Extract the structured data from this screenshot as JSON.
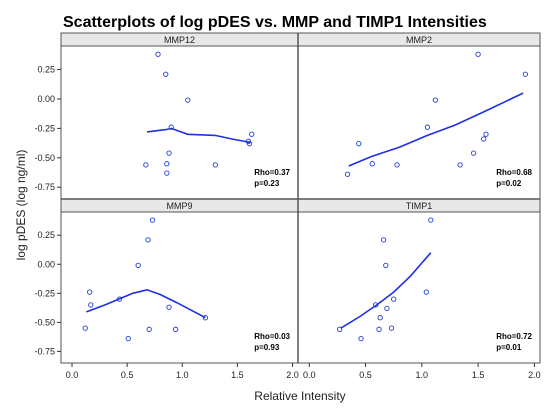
{
  "title": "Scatterplots of log pDES vs. MMP and TIMP1 Intensities",
  "ylabel": "log pDES (log ng/ml)",
  "xlabel": "Relative Intensity",
  "colors": {
    "points": "#1f3fd6",
    "line": "#1f2fe6",
    "panel_header": "#e8e8e8",
    "frame": "#555555"
  },
  "chart_data": {
    "type": "scatter",
    "layout": "2x2 panels",
    "xlim": [
      -0.1,
      2.05
    ],
    "ylim": [
      -0.85,
      0.45
    ],
    "x_ticks": [
      0.0,
      0.5,
      1.0,
      1.5,
      2.0
    ],
    "x_tick_labels": [
      "0.0",
      "0.5",
      "1.0",
      "1.5",
      "2.0"
    ],
    "y_ticks": [
      -0.75,
      -0.5,
      -0.25,
      0.0,
      0.25
    ],
    "y_tick_labels": [
      "-0.75",
      "-0.50",
      "-0.25",
      "0.00",
      "0.25"
    ],
    "grid": false,
    "panels": [
      {
        "name": "MMP12",
        "rho": "Rho=0.37",
        "p": "p=0.23",
        "points": [
          [
            0.67,
            -0.56
          ],
          [
            0.78,
            0.38
          ],
          [
            0.85,
            0.21
          ],
          [
            0.86,
            -0.55
          ],
          [
            0.86,
            -0.63
          ],
          [
            0.88,
            -0.46
          ],
          [
            0.9,
            -0.24
          ],
          [
            1.05,
            -0.01
          ],
          [
            1.3,
            -0.56
          ],
          [
            1.6,
            -0.36
          ],
          [
            1.61,
            -0.38
          ],
          [
            1.63,
            -0.3
          ]
        ],
        "smooth": [
          [
            0.68,
            -0.28
          ],
          [
            0.85,
            -0.26
          ],
          [
            0.9,
            -0.25
          ],
          [
            1.05,
            -0.3
          ],
          [
            1.3,
            -0.31
          ],
          [
            1.45,
            -0.34
          ],
          [
            1.62,
            -0.37
          ]
        ]
      },
      {
        "name": "MMP2",
        "rho": "Rho=0.68",
        "p": "p=0.02",
        "points": [
          [
            0.34,
            -0.64
          ],
          [
            0.44,
            -0.38
          ],
          [
            0.56,
            -0.55
          ],
          [
            0.78,
            -0.56
          ],
          [
            1.05,
            -0.24
          ],
          [
            1.12,
            -0.01
          ],
          [
            1.34,
            -0.56
          ],
          [
            1.46,
            -0.46
          ],
          [
            1.5,
            0.38
          ],
          [
            1.55,
            -0.34
          ],
          [
            1.57,
            -0.3
          ],
          [
            1.92,
            0.21
          ]
        ],
        "smooth": [
          [
            0.35,
            -0.57
          ],
          [
            0.55,
            -0.49
          ],
          [
            0.8,
            -0.41
          ],
          [
            1.05,
            -0.31
          ],
          [
            1.3,
            -0.22
          ],
          [
            1.55,
            -0.11
          ],
          [
            1.9,
            0.05
          ]
        ]
      },
      {
        "name": "MMP9",
        "rho": "Rho=0.03",
        "p": "p=0.93",
        "points": [
          [
            0.12,
            -0.55
          ],
          [
            0.16,
            -0.24
          ],
          [
            0.17,
            -0.35
          ],
          [
            0.43,
            -0.3
          ],
          [
            0.51,
            -0.64
          ],
          [
            0.6,
            -0.01
          ],
          [
            0.69,
            0.21
          ],
          [
            0.7,
            -0.56
          ],
          [
            0.73,
            0.38
          ],
          [
            0.88,
            -0.37
          ],
          [
            0.94,
            -0.56
          ],
          [
            1.21,
            -0.46
          ]
        ],
        "smooth": [
          [
            0.13,
            -0.41
          ],
          [
            0.3,
            -0.35
          ],
          [
            0.55,
            -0.25
          ],
          [
            0.68,
            -0.22
          ],
          [
            0.8,
            -0.26
          ],
          [
            0.95,
            -0.33
          ],
          [
            1.21,
            -0.46
          ]
        ]
      },
      {
        "name": "TIMP1",
        "rho": "Rho=0.72",
        "p": "p=0.01",
        "points": [
          [
            0.27,
            -0.56
          ],
          [
            0.46,
            -0.64
          ],
          [
            0.59,
            -0.35
          ],
          [
            0.62,
            -0.56
          ],
          [
            0.63,
            -0.46
          ],
          [
            0.66,
            0.21
          ],
          [
            0.68,
            -0.01
          ],
          [
            0.69,
            -0.38
          ],
          [
            0.73,
            -0.55
          ],
          [
            0.75,
            -0.3
          ],
          [
            1.04,
            -0.24
          ],
          [
            1.08,
            0.38
          ]
        ],
        "smooth": [
          [
            0.28,
            -0.55
          ],
          [
            0.45,
            -0.45
          ],
          [
            0.6,
            -0.35
          ],
          [
            0.75,
            -0.24
          ],
          [
            0.9,
            -0.1
          ],
          [
            1.08,
            0.1
          ]
        ]
      }
    ]
  }
}
